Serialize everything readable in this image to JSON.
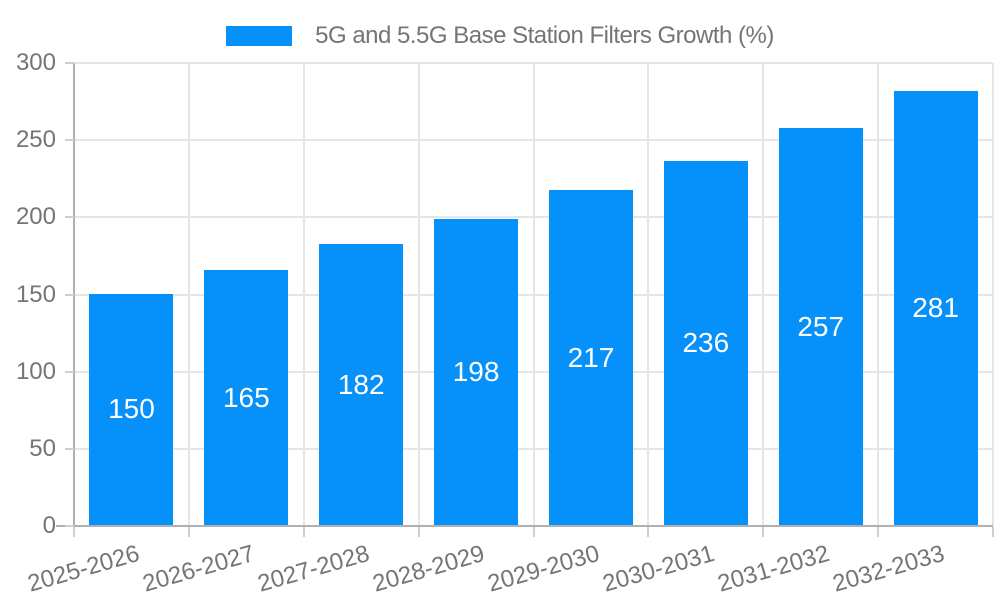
{
  "chart_data": {
    "type": "bar",
    "title": "5G and 5.5G Base Station Filters Growth (%)",
    "categories": [
      "2025-2026",
      "2026-2027",
      "2027-2028",
      "2028-2029",
      "2029-2030",
      "2030-2031",
      "2031-2032",
      "2032-2033"
    ],
    "values": [
      150,
      165,
      182,
      198,
      217,
      236,
      257,
      281
    ],
    "xlabel": "",
    "ylabel": "",
    "ylim": [
      0,
      300
    ],
    "yticks": [
      0,
      50,
      100,
      150,
      200,
      250,
      300
    ],
    "grid": true,
    "legend_position": "top",
    "colors": {
      "bar": "#0690fa",
      "axis_text": "#757575",
      "value_label": "#ffffff",
      "grid_line": "#e6e6e6",
      "axis_line": "#b0b0b0",
      "tick_line": "#cfcfcf"
    }
  }
}
